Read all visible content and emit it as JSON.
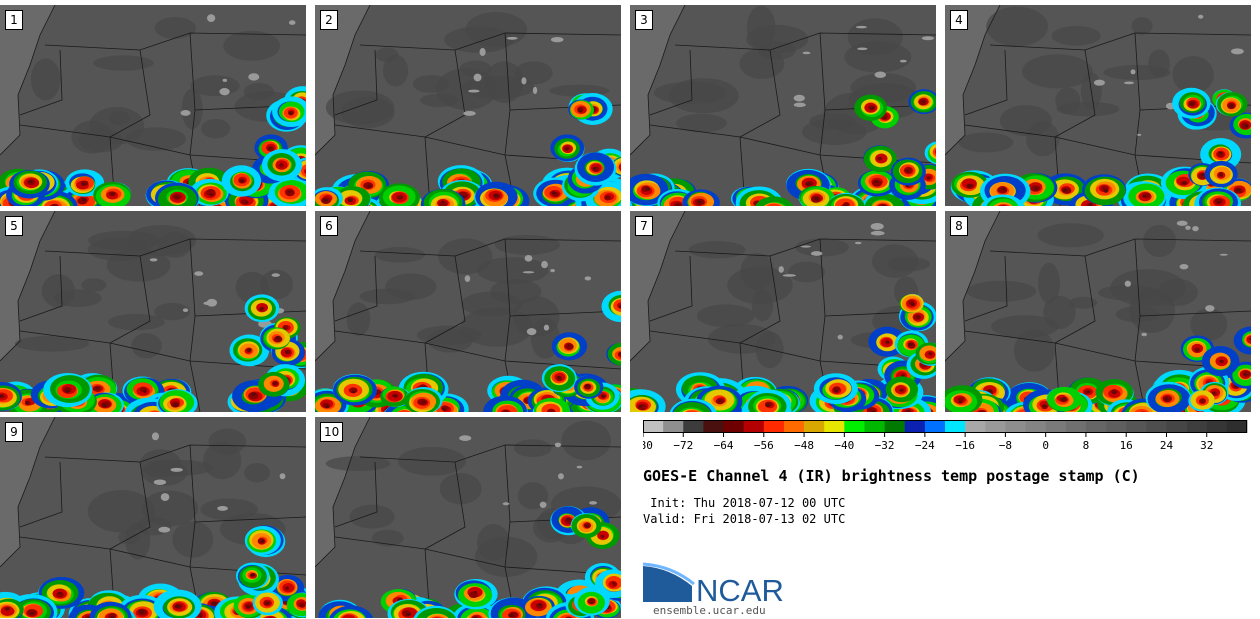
{
  "panels": [
    {
      "label": "1"
    },
    {
      "label": "2"
    },
    {
      "label": "3"
    },
    {
      "label": "4"
    },
    {
      "label": "5"
    },
    {
      "label": "6"
    },
    {
      "label": "7"
    },
    {
      "label": "8"
    },
    {
      "label": "9"
    },
    {
      "label": "10"
    }
  ],
  "colorbar": {
    "colors": [
      "#c0c0c0",
      "#8f8f8f",
      "#3c3c3c",
      "#4a1010",
      "#6e0000",
      "#b40000",
      "#ff2a00",
      "#ff6a00",
      "#d8a800",
      "#e6e600",
      "#00ee00",
      "#00b800",
      "#007a00",
      "#0b22b0",
      "#0070ff",
      "#00e6ff",
      "#a8a8a8",
      "#9a9a9a",
      "#8e8e8e",
      "#848484",
      "#7a7a7a",
      "#707070",
      "#666666",
      "#5e5e5e",
      "#565656",
      "#4e4e4e",
      "#464646",
      "#3e3e3e",
      "#363636",
      "#2e2e2e"
    ],
    "ticks": [
      "−80",
      "−72",
      "−64",
      "−56",
      "−48",
      "−40",
      "−32",
      "−24",
      "−16",
      "−8",
      "0",
      "8",
      "16",
      "24",
      "32"
    ]
  },
  "title": "GOES-E Channel 4 (IR) brightness temp postage stamp (C)",
  "init_line": " Init: Thu 2018-07-12 00 UTC",
  "valid_line": "Valid: Fri 2018-07-13 02 UTC",
  "logo": {
    "text": "NCAR",
    "url": "ensemble.ucar.edu",
    "brand_color": "#1f5a9a"
  }
}
